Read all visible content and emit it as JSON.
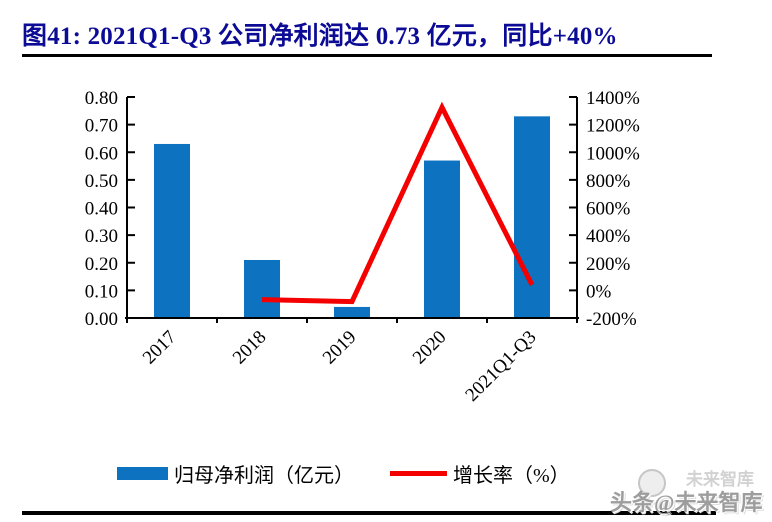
{
  "chart_data": {
    "type": "bar+line",
    "title": "图41:  2021Q1-Q3 公司净利润达 0.73 亿元，同比+40%",
    "categories": [
      "2017",
      "2018",
      "2019",
      "2020",
      "2021Q1-Q3"
    ],
    "series": [
      {
        "name": "归母净利润（亿元）",
        "type": "bar",
        "axis": "left",
        "color": "#0d72c0",
        "values": [
          0.63,
          0.21,
          0.04,
          0.57,
          0.73
        ]
      },
      {
        "name": "增长率（%）",
        "type": "line",
        "axis": "right",
        "color": "#f40000",
        "values": [
          null,
          -67,
          -81,
          1325,
          40
        ]
      }
    ],
    "left_axis": {
      "min": 0,
      "max": 0.8,
      "tick_labels": [
        "0.00",
        "0.10",
        "0.20",
        "0.30",
        "0.40",
        "0.50",
        "0.60",
        "0.70",
        "0.80"
      ]
    },
    "right_axis": {
      "min": -200,
      "max": 1400,
      "tick_labels": [
        "-200%",
        "0%",
        "200%",
        "400%",
        "600%",
        "800%",
        "1000%",
        "1200%",
        "1400%"
      ]
    },
    "grid": false,
    "legend_position": "bottom"
  },
  "colors": {
    "title": "#0b0b96",
    "axis": "#000000",
    "rule": "#000000",
    "watermark": "#9d9d9d"
  },
  "watermark": {
    "text": "头条@未来智库",
    "ghost_text": "未来智库"
  }
}
